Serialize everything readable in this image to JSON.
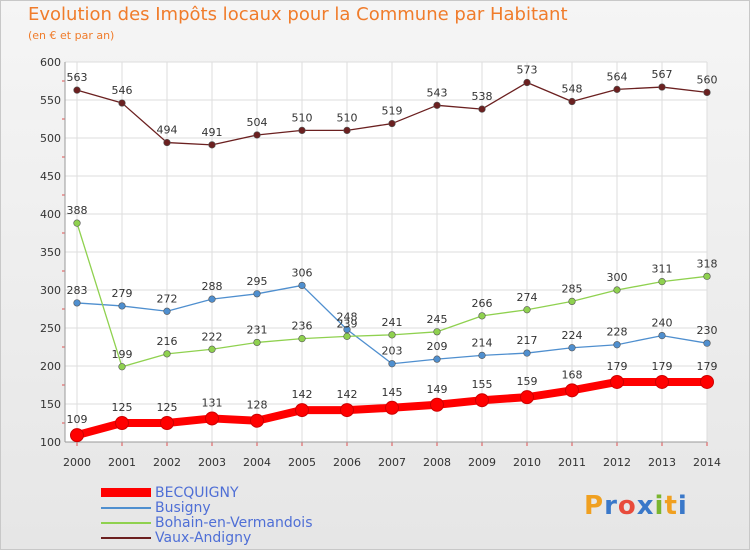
{
  "header": {
    "title": "Evolution des Impôts locaux pour la Commune par Habitant",
    "subtitle": "(en € et par an)"
  },
  "logo": {
    "text": "Proxiti",
    "letters": [
      {
        "ch": "P",
        "color": "#f0a020"
      },
      {
        "ch": "r",
        "color": "#3a78c9"
      },
      {
        "ch": "o",
        "color": "#e84b3c"
      },
      {
        "ch": "x",
        "color": "#3a78c9"
      },
      {
        "ch": "i",
        "color": "#7ab52f"
      },
      {
        "ch": "t",
        "color": "#f0a020"
      },
      {
        "ch": "i",
        "color": "#3a78c9"
      }
    ]
  },
  "chart_data": {
    "type": "line",
    "title": "Evolution des Impôts locaux pour la Commune par Habitant",
    "subtitle": "(en € et par an)",
    "x": [
      2000,
      2001,
      2002,
      2003,
      2004,
      2005,
      2006,
      2007,
      2008,
      2009,
      2010,
      2011,
      2012,
      2013,
      2014
    ],
    "ylim": [
      100,
      600
    ],
    "yticks": [
      100,
      150,
      200,
      250,
      300,
      350,
      400,
      450,
      500,
      550,
      600
    ],
    "grid": true,
    "legend_position": "bottom-left",
    "series": [
      {
        "name": "BECQUIGNY",
        "color": "#ff0000",
        "values": [
          109,
          125,
          125,
          131,
          128,
          142,
          142,
          145,
          149,
          155,
          159,
          168,
          179,
          179,
          179
        ]
      },
      {
        "name": "Busigny",
        "color": "#4f8fcf",
        "values": [
          283,
          279,
          272,
          288,
          295,
          306,
          248,
          203,
          209,
          214,
          217,
          224,
          228,
          240,
          230
        ]
      },
      {
        "name": "Bohain-en-Vermandois",
        "color": "#8fd14f",
        "values": [
          388,
          199,
          216,
          222,
          231,
          236,
          239,
          241,
          245,
          266,
          274,
          285,
          300,
          311,
          318
        ]
      },
      {
        "name": "Vaux-Andigny",
        "color": "#6b2020",
        "values": [
          563,
          546,
          494,
          491,
          504,
          510,
          510,
          519,
          543,
          538,
          573,
          548,
          564,
          567,
          560
        ]
      }
    ]
  }
}
